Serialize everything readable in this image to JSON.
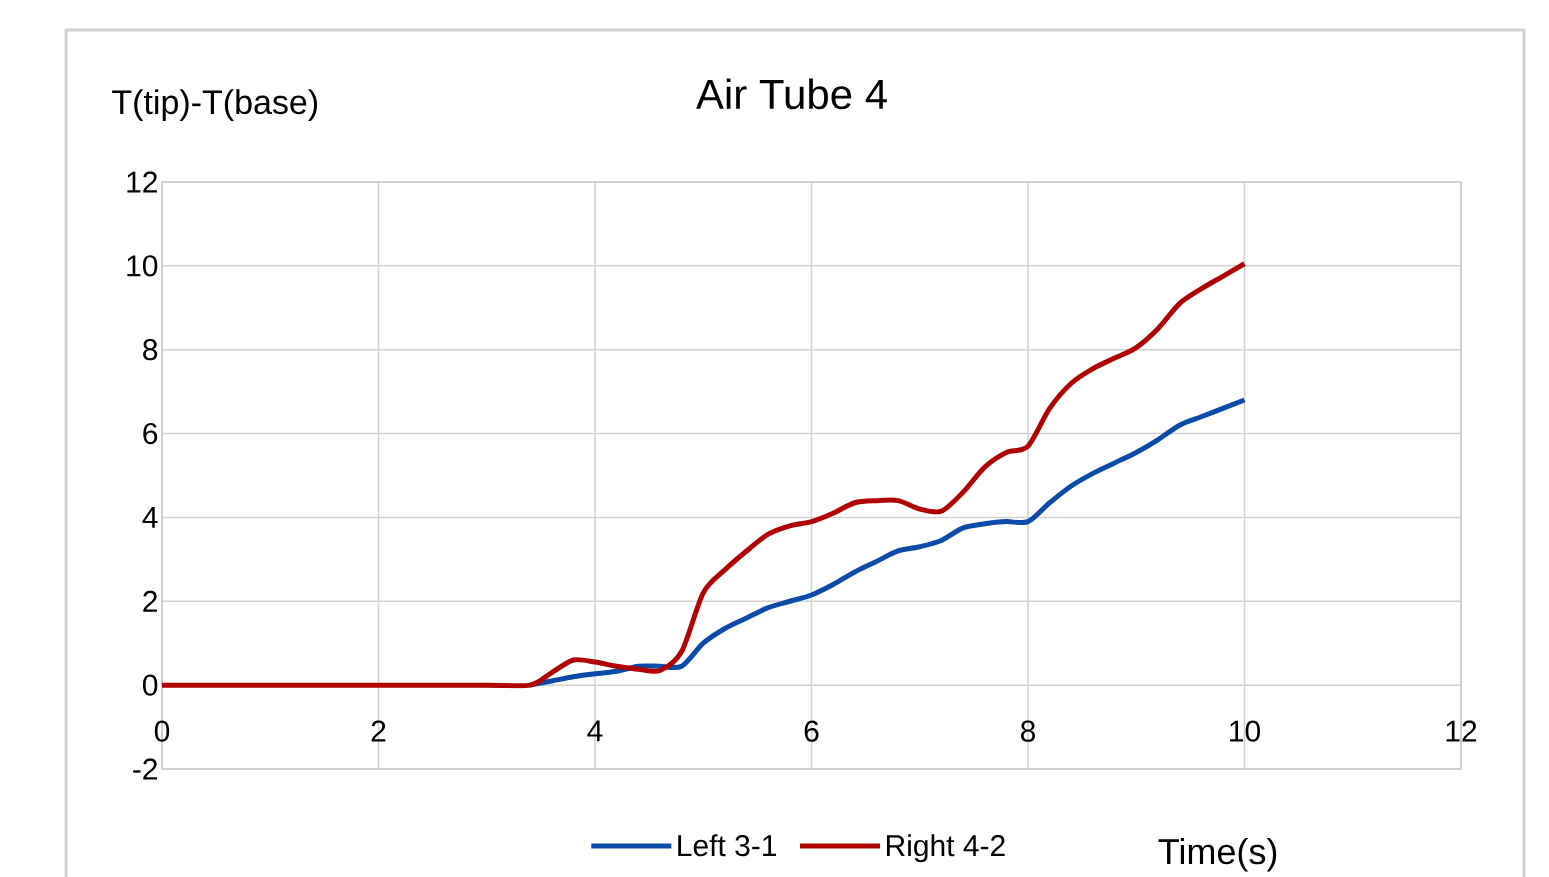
{
  "chart_data": {
    "type": "line",
    "title": "Air Tube 4",
    "xlabel": "Time(s)",
    "ylabel": "T(tip)-T(base)",
    "xlim": [
      0,
      12
    ],
    "xticks": [
      0,
      2,
      4,
      6,
      8,
      10,
      12
    ],
    "ylim": [
      -2,
      12
    ],
    "yticks": [
      -2,
      0,
      2,
      4,
      6,
      8,
      10,
      12
    ],
    "grid": true,
    "legend": "bottom",
    "marker": "none",
    "line_style": "solid",
    "x": [
      0,
      1,
      2,
      3,
      3.4,
      3.6,
      3.8,
      4.0,
      4.2,
      4.4,
      4.6,
      4.8,
      5.0,
      5.2,
      5.4,
      5.6,
      5.8,
      6.0,
      6.2,
      6.4,
      6.6,
      6.8,
      7.0,
      7.2,
      7.4,
      7.6,
      7.8,
      8.0,
      8.2,
      8.4,
      8.6,
      8.8,
      9.0,
      9.2,
      9.4,
      9.6,
      9.8,
      10
    ],
    "series": [
      {
        "name": "Left 3-1",
        "color": "#0a4aa8",
        "values": [
          null,
          null,
          null,
          null,
          0,
          0.1,
          0.2,
          0.27,
          0.33,
          0.45,
          0.45,
          0.45,
          1.0,
          1.35,
          1.6,
          1.85,
          2.0,
          2.15,
          2.4,
          2.7,
          2.95,
          3.2,
          3.3,
          3.45,
          3.75,
          3.85,
          3.9,
          3.9,
          4.35,
          4.75,
          5.05,
          5.3,
          5.55,
          5.85,
          6.2,
          6.4,
          6.6,
          6.8
        ]
      },
      {
        "name": "Right 4-2",
        "color": "#b00000",
        "values": [
          0,
          0,
          0,
          0,
          0,
          0.3,
          0.6,
          0.55,
          0.45,
          0.38,
          0.35,
          0.8,
          2.2,
          2.75,
          3.2,
          3.6,
          3.8,
          3.9,
          4.1,
          4.35,
          4.4,
          4.4,
          4.2,
          4.15,
          4.6,
          5.2,
          5.55,
          5.7,
          6.6,
          7.2,
          7.55,
          7.8,
          8.05,
          8.5,
          9.1,
          9.45,
          9.75,
          10.05
        ]
      }
    ]
  }
}
